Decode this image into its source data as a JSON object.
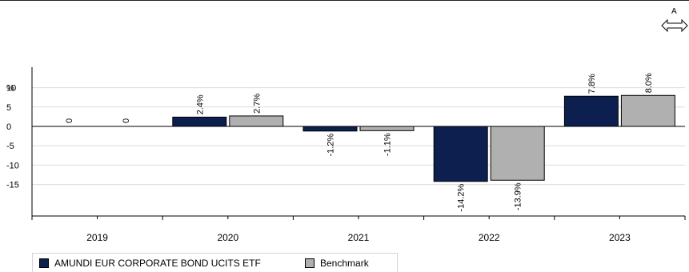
{
  "chart_data": {
    "type": "bar",
    "categories": [
      "2019",
      "2020",
      "2021",
      "2022",
      "2023"
    ],
    "series": [
      {
        "name": "AMUNDI EUR CORPORATE BOND UCITS ETF",
        "color": "#0d1f4f",
        "values": [
          0,
          2.4,
          -1.2,
          -14.2,
          7.8
        ],
        "labels": [
          "0",
          "2.4%",
          "-1.2%",
          "-14.2%",
          "7.8%"
        ]
      },
      {
        "name": "Benchmark",
        "color": "#b0b0b0",
        "values": [
          0,
          2.7,
          -1.1,
          -13.9,
          8.0
        ],
        "labels": [
          "0",
          "2.7%",
          "-1.1%",
          "-13.9%",
          "8.0%"
        ]
      }
    ],
    "ylabel": "%",
    "yticks": [
      10,
      5,
      0,
      -5,
      -10,
      -15
    ],
    "ytick_labels": [
      "10",
      "5",
      "0",
      "-5",
      "-10",
      "-15"
    ],
    "ylim": [
      -23,
      10
    ],
    "grid": true,
    "legend_position": "bottom-left"
  },
  "controls": {
    "resize_letter": "A"
  }
}
